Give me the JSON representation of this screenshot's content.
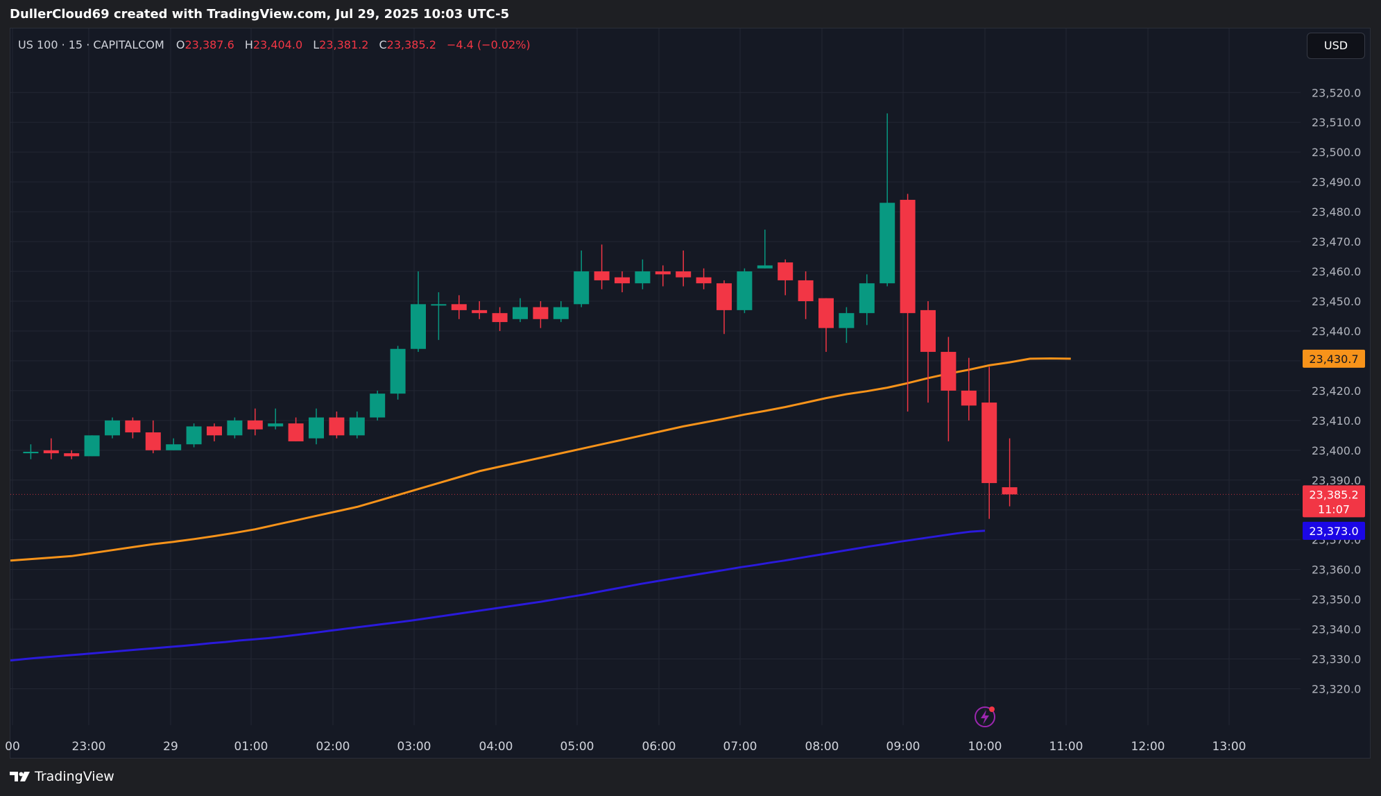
{
  "header": {
    "caption": "DullerCloud69 created with TradingView.com, Jul 29, 2025 10:03 UTC-5"
  },
  "legend": {
    "symbol": "US 100 · 15 · CAPITALCOM",
    "open_label": "O",
    "open": "23,387.6",
    "high_label": "H",
    "high": "23,404.0",
    "low_label": "L",
    "low": "23,381.2",
    "close_label": "C",
    "close": "23,385.2",
    "change": "−4.4 (−0.02%)"
  },
  "currency_button": "USD",
  "footer": {
    "brand": "TradingView",
    "brand_icon": "tradingview-logo-icon"
  },
  "realtime_icon": "lightning-icon",
  "colors": {
    "up": "#089981",
    "down": "#f23645",
    "ma_fast": "#f7931a",
    "ma_slow": "#2a1adb",
    "background": "#151924",
    "grid": "#232733"
  },
  "chart_data": {
    "type": "candlestick",
    "x_tick_labels": [
      "00",
      "23:00",
      "29",
      "01:00",
      "02:00",
      "03:00",
      "04:00",
      "05:00",
      "06:00",
      "07:00",
      "08:00",
      "09:00",
      "10:00",
      "11:00",
      "12:00",
      "13:00"
    ],
    "y_tick_labels": [
      "23,520.0",
      "23,510.0",
      "23,500.0",
      "23,490.0",
      "23,480.0",
      "23,470.0",
      "23,460.0",
      "23,450.0",
      "23,440.0",
      "23,430.0",
      "23,420.0",
      "23,410.0",
      "23,400.0",
      "23,390.0",
      "23,380.0",
      "23,370.0",
      "23,360.0",
      "23,350.0",
      "23,340.0",
      "23,330.0",
      "23,320.0"
    ],
    "ylim": [
      23315,
      23531
    ],
    "candle_interval": "15",
    "candles": [
      {
        "time": "22:15",
        "o": 23399,
        "h": 23402,
        "l": 23397,
        "c": 23399.5
      },
      {
        "time": "22:30",
        "o": 23400,
        "h": 23404,
        "l": 23397,
        "c": 23399
      },
      {
        "time": "22:45",
        "o": 23399,
        "h": 23400,
        "l": 23397,
        "c": 23398
      },
      {
        "time": "23:00",
        "o": 23398,
        "h": 23405,
        "l": 23398,
        "c": 23405
      },
      {
        "time": "23:15",
        "o": 23405,
        "h": 23411,
        "l": 23404,
        "c": 23410
      },
      {
        "time": "23:30",
        "o": 23410,
        "h": 23411,
        "l": 23404,
        "c": 23406
      },
      {
        "time": "23:45",
        "o": 23406,
        "h": 23410,
        "l": 23399,
        "c": 23400
      },
      {
        "time": "00:00",
        "o": 23400,
        "h": 23404,
        "l": 23400,
        "c": 23402
      },
      {
        "time": "00:15",
        "o": 23402,
        "h": 23409,
        "l": 23401,
        "c": 23408
      },
      {
        "time": "00:30",
        "o": 23408,
        "h": 23409,
        "l": 23403,
        "c": 23405
      },
      {
        "time": "00:45",
        "o": 23405,
        "h": 23411,
        "l": 23404,
        "c": 23410
      },
      {
        "time": "01:00",
        "o": 23410,
        "h": 23414,
        "l": 23405,
        "c": 23407
      },
      {
        "time": "01:15",
        "o": 23408,
        "h": 23414,
        "l": 23407,
        "c": 23409
      },
      {
        "time": "01:30",
        "o": 23409,
        "h": 23411,
        "l": 23403,
        "c": 23403
      },
      {
        "time": "01:45",
        "o": 23404,
        "h": 23414,
        "l": 23402,
        "c": 23411
      },
      {
        "time": "02:00",
        "o": 23411,
        "h": 23413,
        "l": 23404,
        "c": 23405
      },
      {
        "time": "02:15",
        "o": 23405,
        "h": 23413,
        "l": 23404,
        "c": 23411
      },
      {
        "time": "02:30",
        "o": 23411,
        "h": 23420,
        "l": 23410,
        "c": 23419
      },
      {
        "time": "02:45",
        "o": 23419,
        "h": 23435,
        "l": 23417,
        "c": 23434
      },
      {
        "time": "03:00",
        "o": 23434,
        "h": 23460,
        "l": 23433,
        "c": 23449
      },
      {
        "time": "03:15",
        "o": 23449,
        "h": 23453,
        "l": 23437,
        "c": 23449
      },
      {
        "time": "03:30",
        "o": 23449,
        "h": 23452,
        "l": 23444,
        "c": 23447
      },
      {
        "time": "03:45",
        "o": 23447,
        "h": 23450,
        "l": 23444,
        "c": 23446
      },
      {
        "time": "04:00",
        "o": 23446,
        "h": 23448,
        "l": 23440,
        "c": 23443
      },
      {
        "time": "04:15",
        "o": 23444,
        "h": 23451,
        "l": 23443,
        "c": 23448
      },
      {
        "time": "04:30",
        "o": 23448,
        "h": 23450,
        "l": 23441,
        "c": 23444
      },
      {
        "time": "04:45",
        "o": 23444,
        "h": 23450,
        "l": 23443,
        "c": 23448
      },
      {
        "time": "05:00",
        "o": 23449,
        "h": 23467,
        "l": 23448,
        "c": 23460
      },
      {
        "time": "05:15",
        "o": 23460,
        "h": 23469,
        "l": 23454,
        "c": 23457
      },
      {
        "time": "05:30",
        "o": 23458,
        "h": 23460,
        "l": 23453,
        "c": 23456
      },
      {
        "time": "05:45",
        "o": 23456,
        "h": 23464,
        "l": 23454,
        "c": 23460
      },
      {
        "time": "06:00",
        "o": 23460,
        "h": 23462,
        "l": 23455,
        "c": 23459
      },
      {
        "time": "06:15",
        "o": 23460,
        "h": 23467,
        "l": 23455,
        "c": 23458
      },
      {
        "time": "06:30",
        "o": 23458,
        "h": 23461,
        "l": 23454,
        "c": 23456
      },
      {
        "time": "06:45",
        "o": 23456,
        "h": 23457,
        "l": 23439,
        "c": 23447
      },
      {
        "time": "07:00",
        "o": 23447,
        "h": 23461,
        "l": 23446,
        "c": 23460
      },
      {
        "time": "07:15",
        "o": 23461,
        "h": 23474,
        "l": 23461,
        "c": 23462
      },
      {
        "time": "07:30",
        "o": 23463,
        "h": 23464,
        "l": 23452,
        "c": 23457
      },
      {
        "time": "07:45",
        "o": 23457,
        "h": 23460,
        "l": 23444,
        "c": 23450
      },
      {
        "time": "08:00",
        "o": 23451,
        "h": 23451,
        "l": 23433,
        "c": 23441
      },
      {
        "time": "08:15",
        "o": 23441,
        "h": 23448,
        "l": 23436,
        "c": 23446
      },
      {
        "time": "08:30",
        "o": 23446,
        "h": 23459,
        "l": 23442,
        "c": 23456
      },
      {
        "time": "08:45",
        "o": 23456,
        "h": 23513,
        "l": 23455,
        "c": 23483
      },
      {
        "time": "09:00",
        "o": 23484,
        "h": 23486,
        "l": 23413,
        "c": 23446
      },
      {
        "time": "09:15",
        "o": 23447,
        "h": 23450,
        "l": 23416,
        "c": 23433
      },
      {
        "time": "09:30",
        "o": 23433,
        "h": 23438,
        "l": 23403,
        "c": 23420
      },
      {
        "time": "09:45",
        "o": 23420,
        "h": 23431,
        "l": 23410,
        "c": 23415
      },
      {
        "time": "10:00",
        "o": 23416,
        "h": 23428,
        "l": 23377,
        "c": 23389
      },
      {
        "time": "10:15",
        "o": 23387.6,
        "h": 23404,
        "l": 23381.2,
        "c": 23385.2
      }
    ],
    "series": [
      {
        "type": "line",
        "color": "#f7931a",
        "last_value": "23,430.7",
        "values": [
          23363,
          23363.5,
          23364,
          23364.5,
          23365.5,
          23366.5,
          23367.5,
          23368.5,
          23369.3,
          23370.2,
          23371.2,
          23372.3,
          23373.5,
          23375,
          23376.5,
          23378,
          23379.5,
          23381,
          23383,
          23385,
          23387,
          23389,
          23391,
          23393,
          23394.5,
          23396,
          23397.5,
          23399,
          23400.5,
          23402,
          23403.5,
          23405,
          23406.5,
          23408,
          23409.3,
          23410.6,
          23412,
          23413.2,
          23414.5,
          23416,
          23417.5,
          23418.8,
          23419.8,
          23421,
          23422.5,
          23424.2,
          23425.7,
          23427,
          23428.5,
          23429.5,
          23430.7,
          23430.8,
          23430.7
        ]
      },
      {
        "type": "line",
        "color": "#2a1adb",
        "last_value": "23,373.0",
        "values": [
          23329.5,
          23330,
          23330.4,
          23330.8,
          23331.2,
          23331.6,
          23332,
          23332.4,
          23332.8,
          23333.2,
          23333.6,
          23334,
          23334.4,
          23334.8,
          23335.3,
          23335.7,
          23336.2,
          23336.6,
          23337,
          23337.5,
          23338.1,
          23338.7,
          23339.3,
          23339.9,
          23340.5,
          23341.1,
          23341.7,
          23342.3,
          23342.9,
          23343.6,
          23344.3,
          23345,
          23345.7,
          23346.4,
          23347.1,
          23347.8,
          23348.5,
          23349.2,
          23350,
          23350.8,
          23351.6,
          23352.5,
          23353.4,
          23354.3,
          23355.2,
          23356,
          23356.8,
          23357.6,
          23358.4,
          23359.2,
          23360,
          23360.8,
          23361.5,
          23362.3,
          23363,
          23363.8,
          23364.6,
          23365.4,
          23366.2,
          23367,
          23367.8,
          23368.5,
          23369.3,
          23370,
          23370.7,
          23371.4,
          23372.1,
          23372.7,
          23373
        ]
      }
    ],
    "last_price": "23,385.2",
    "countdown": "11:07"
  }
}
